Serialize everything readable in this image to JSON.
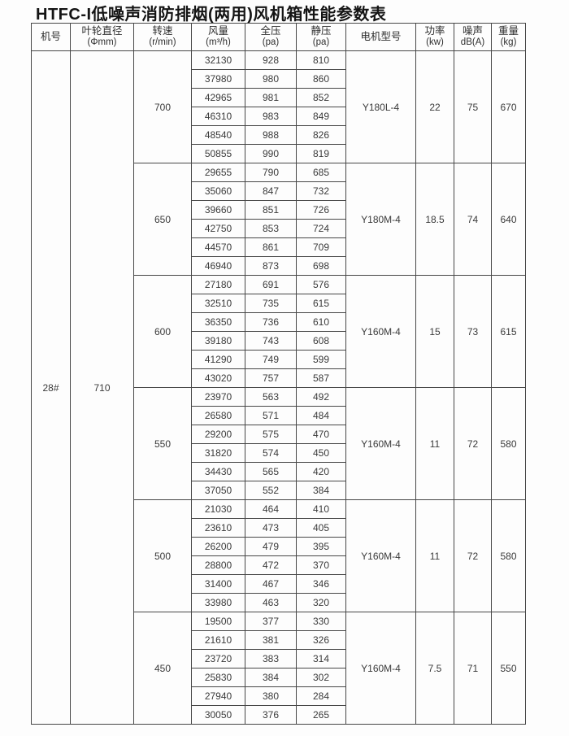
{
  "page": {
    "title": "HTFC-I低噪声消防排烟(两用)风机箱性能参数表"
  },
  "table": {
    "headers": [
      {
        "key": "machine-no",
        "line1": "机号",
        "line2": ""
      },
      {
        "key": "impeller-diameter",
        "line1": "叶轮直径",
        "line2": "(Φmm)"
      },
      {
        "key": "speed",
        "line1": "转速",
        "line2": "(r/min)"
      },
      {
        "key": "airflow",
        "line1": "风量",
        "line2": "(m³/h)"
      },
      {
        "key": "total-pressure",
        "line1": "全压",
        "line2": "(pa)"
      },
      {
        "key": "static-pressure",
        "line1": "静压",
        "line2": "(pa)"
      },
      {
        "key": "motor-model",
        "line1": "电机型号",
        "line2": ""
      },
      {
        "key": "power",
        "line1": "功率",
        "line2": "(kw)"
      },
      {
        "key": "noise",
        "line1": "噪声",
        "line2": "dB(A)"
      },
      {
        "key": "weight",
        "line1": "重量",
        "line2": "(kg)"
      }
    ],
    "machine_no": "28#",
    "impeller_diameter": "710",
    "groups": [
      {
        "speed": "700",
        "motor": "Y180L-4",
        "power": "22",
        "noise": "75",
        "weight": "670",
        "rows": [
          [
            "32130",
            "928",
            "810"
          ],
          [
            "37980",
            "980",
            "860"
          ],
          [
            "42965",
            "981",
            "852"
          ],
          [
            "46310",
            "983",
            "849"
          ],
          [
            "48540",
            "988",
            "826"
          ],
          [
            "50855",
            "990",
            "819"
          ]
        ]
      },
      {
        "speed": "650",
        "motor": "Y180M-4",
        "power": "18.5",
        "noise": "74",
        "weight": "640",
        "rows": [
          [
            "29655",
            "790",
            "685"
          ],
          [
            "35060",
            "847",
            "732"
          ],
          [
            "39660",
            "851",
            "726"
          ],
          [
            "42750",
            "853",
            "724"
          ],
          [
            "44570",
            "861",
            "709"
          ],
          [
            "46940",
            "873",
            "698"
          ]
        ]
      },
      {
        "speed": "600",
        "motor": "Y160M-4",
        "power": "15",
        "noise": "73",
        "weight": "615",
        "rows": [
          [
            "27180",
            "691",
            "576"
          ],
          [
            "32510",
            "735",
            "615"
          ],
          [
            "36350",
            "736",
            "610"
          ],
          [
            "39180",
            "743",
            "608"
          ],
          [
            "41290",
            "749",
            "599"
          ],
          [
            "43020",
            "757",
            "587"
          ]
        ]
      },
      {
        "speed": "550",
        "motor": "Y160M-4",
        "power": "11",
        "noise": "72",
        "weight": "580",
        "rows": [
          [
            "23970",
            "563",
            "492"
          ],
          [
            "26580",
            "571",
            "484"
          ],
          [
            "29200",
            "575",
            "470"
          ],
          [
            "31820",
            "574",
            "450"
          ],
          [
            "34430",
            "565",
            "420"
          ],
          [
            "37050",
            "552",
            "384"
          ]
        ]
      },
      {
        "speed": "500",
        "motor": "Y160M-4",
        "power": "11",
        "noise": "72",
        "weight": "580",
        "rows": [
          [
            "21030",
            "464",
            "410"
          ],
          [
            "23610",
            "473",
            "405"
          ],
          [
            "26200",
            "479",
            "395"
          ],
          [
            "28800",
            "472",
            "370"
          ],
          [
            "31400",
            "467",
            "346"
          ],
          [
            "33980",
            "463",
            "320"
          ]
        ]
      },
      {
        "speed": "450",
        "motor": "Y160M-4",
        "power": "7.5",
        "noise": "71",
        "weight": "550",
        "rows": [
          [
            "19500",
            "377",
            "330"
          ],
          [
            "21610",
            "381",
            "326"
          ],
          [
            "23720",
            "383",
            "314"
          ],
          [
            "25830",
            "384",
            "302"
          ],
          [
            "27940",
            "380",
            "284"
          ],
          [
            "30050",
            "376",
            "265"
          ]
        ]
      }
    ]
  }
}
